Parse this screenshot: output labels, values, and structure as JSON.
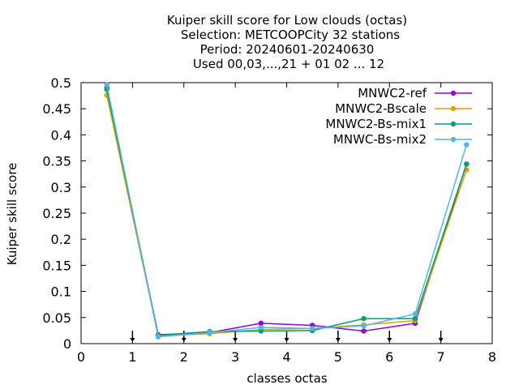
{
  "chart_data": {
    "type": "line",
    "title_lines": [
      "Kuiper skill score  for Low clouds (octas)",
      "Selection: METCOOPCity      32 stations",
      "Period: 20240601-20240630",
      "Used 00,03,...,21 + 01 02 ... 12"
    ],
    "xlabel": "classes octas",
    "ylabel": "Kuiper skill score",
    "xlim": [
      0,
      8
    ],
    "ylim": [
      0,
      0.5
    ],
    "xticks": [
      0,
      1,
      2,
      3,
      4,
      5,
      6,
      7,
      8
    ],
    "xtick_labels": [
      "0",
      "1",
      "2",
      "3",
      "4",
      "5",
      "6",
      "7",
      "8"
    ],
    "yticks": [
      0,
      0.05,
      0.1,
      0.15,
      0.2,
      0.25,
      0.3,
      0.35,
      0.4,
      0.45,
      0.5
    ],
    "ytick_labels": [
      "0",
      "0.05",
      "0.1",
      "0.15",
      "0.2",
      "0.25",
      "0.3",
      "0.35",
      "0.4",
      "0.45",
      "0.5"
    ],
    "grid": false,
    "legend_position": "top-right",
    "class_boundary_markers": [
      1,
      2,
      3,
      4,
      5,
      6,
      7
    ],
    "x": [
      0.5,
      1.5,
      2.5,
      3.5,
      4.5,
      5.5,
      6.5,
      7.5
    ],
    "series": [
      {
        "name": "MNWC2-ref",
        "color": "#9400d3",
        "values": [
          0.49,
          0.017,
          0.021,
          0.039,
          0.035,
          0.024,
          0.039,
          0.344
        ]
      },
      {
        "name": "MNWC2-Bscale",
        "color": "#e69f00",
        "values": [
          0.476,
          0.015,
          0.019,
          0.027,
          0.029,
          0.036,
          0.044,
          0.333
        ]
      },
      {
        "name": "MNWC2-Bs-mix1",
        "color": "#009e73",
        "values": [
          0.487,
          0.016,
          0.023,
          0.024,
          0.025,
          0.048,
          0.048,
          0.344
        ]
      },
      {
        "name": "MNWC-Bs-mix2",
        "color": "#56b4e9",
        "values": [
          0.496,
          0.013,
          0.021,
          0.031,
          0.029,
          0.034,
          0.057,
          0.381
        ]
      }
    ]
  }
}
